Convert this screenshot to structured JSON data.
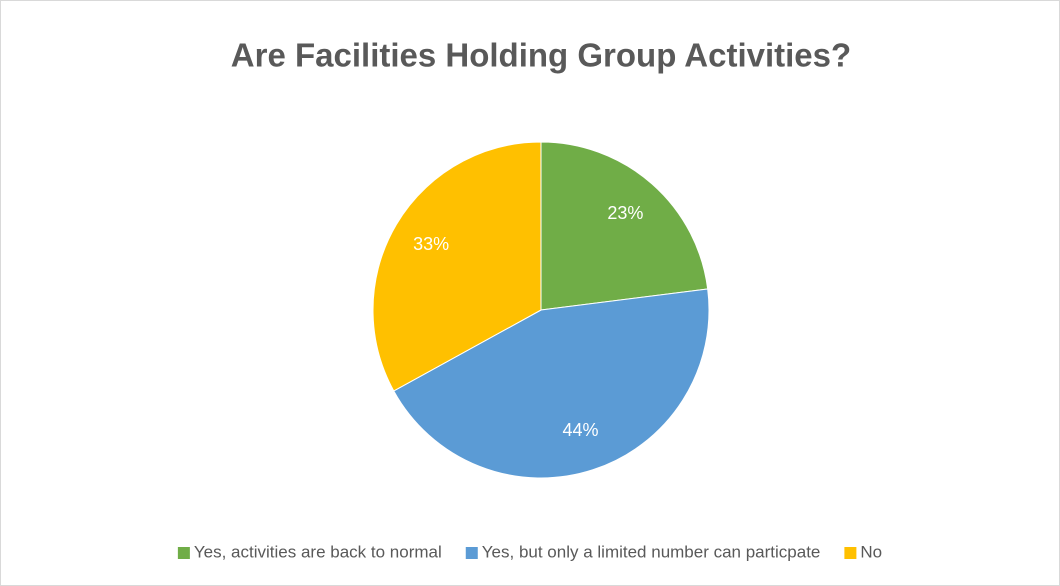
{
  "chart_data": {
    "type": "pie",
    "title": "Are Facilities Holding Group Activities?",
    "categories": [
      "Yes, activities are back to normal",
      "Yes, but only a limited number can particpate",
      "No"
    ],
    "values": [
      23,
      44,
      33
    ],
    "value_labels": [
      "23%",
      "44%",
      "33%"
    ],
    "colors": [
      "#70ad47",
      "#5b9bd5",
      "#ffc000"
    ],
    "legend": "bottom"
  }
}
